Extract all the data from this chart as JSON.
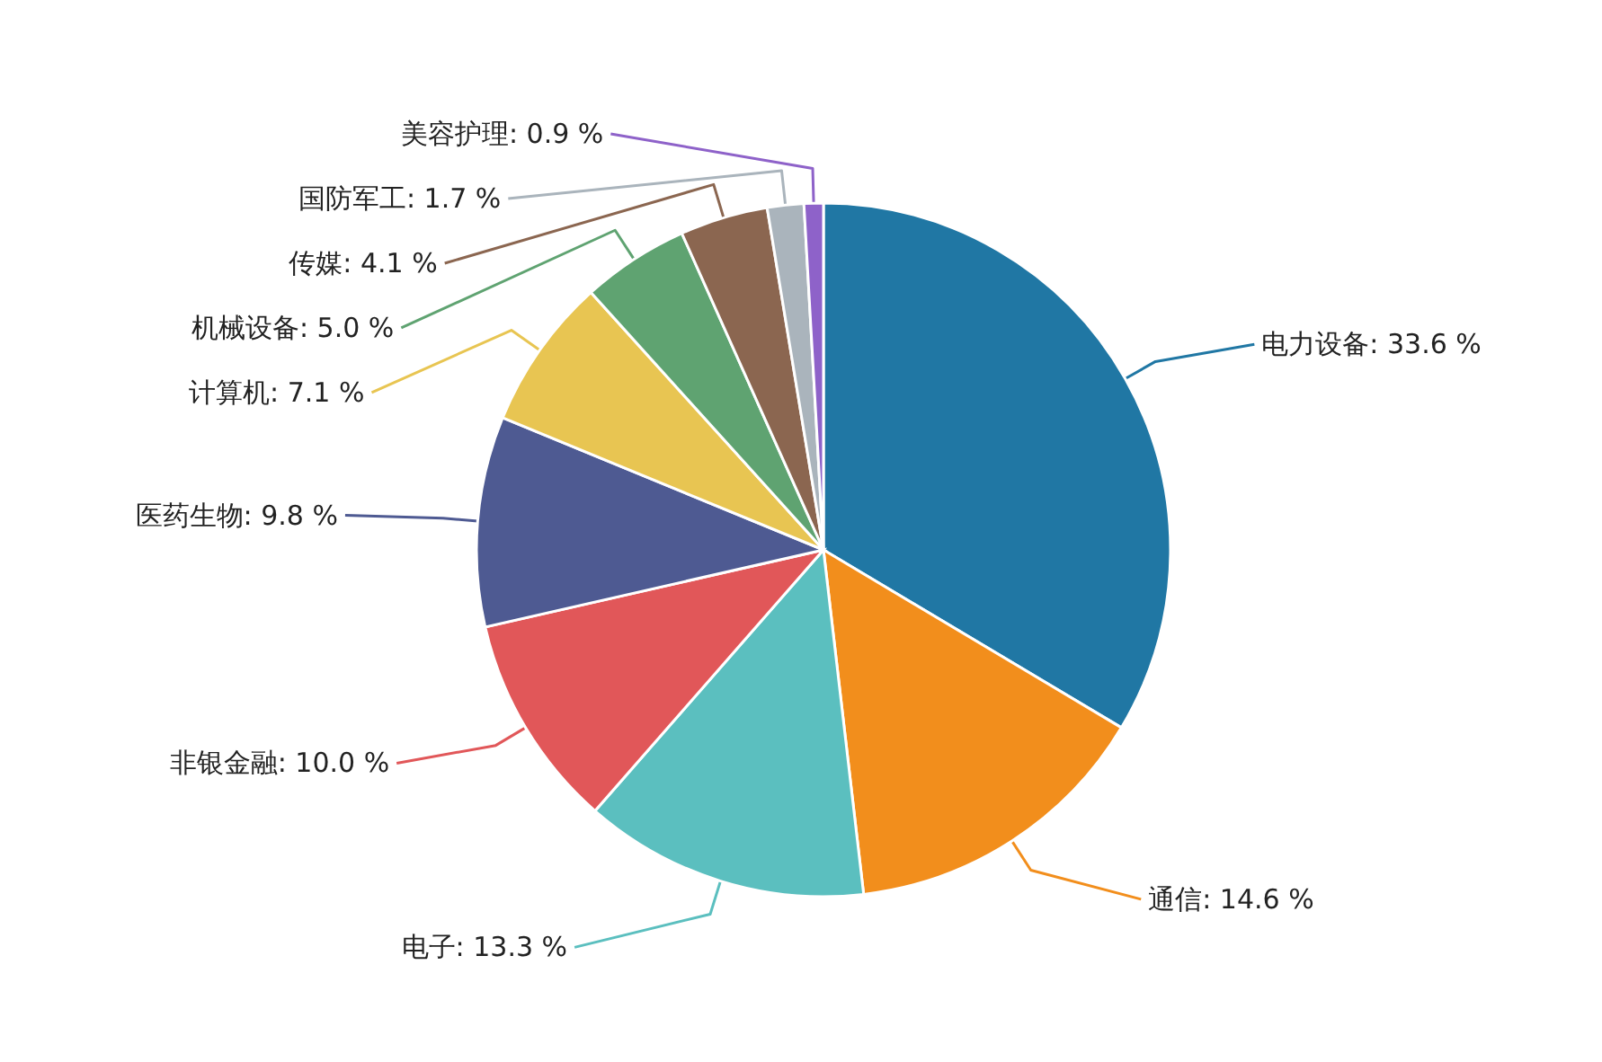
{
  "chart_data": {
    "type": "pie",
    "categories": [
      "电力设备",
      "通信",
      "电子",
      "非银金融",
      "医药生物",
      "计算机",
      "机械设备",
      "传媒",
      "国防军工",
      "美容护理"
    ],
    "values": [
      33.6,
      14.6,
      13.3,
      10.0,
      9.8,
      7.1,
      5.0,
      4.1,
      1.7,
      0.9
    ],
    "value_labels": [
      "33.6 %",
      "14.6 %",
      "13.3 %",
      "10.0 %",
      "9.8 %",
      "7.1 %",
      "5.0 %",
      "4.1 %",
      "1.7 %",
      "0.9 %"
    ],
    "colors": [
      "#2077a4",
      "#f28e1c",
      "#5bbfbf",
      "#e15759",
      "#4e5a92",
      "#e8c552",
      "#5fa371",
      "#8b6650",
      "#aab4bc",
      "#8e62c9"
    ]
  }
}
